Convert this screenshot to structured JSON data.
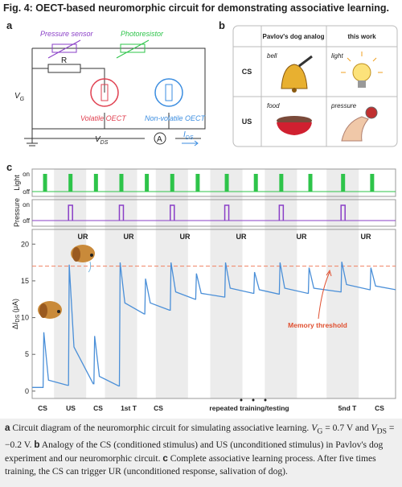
{
  "title": "Fig. 4: OECT-based neuromorphic circuit for demonstrating associative learning.",
  "panel_a": {
    "letter": "a",
    "pressure_sensor": "Pressure sensor",
    "photoresistor": "Photoresistor",
    "resistor": "R",
    "vg": {
      "main": "V",
      "sub": "G"
    },
    "volatile": "Volatile OECT",
    "nonvolatile": "Non-volatile OECT",
    "vds": {
      "main": "V",
      "sub": "DS"
    },
    "ammeter": "A",
    "ids": {
      "main": "I",
      "sub": "DS"
    }
  },
  "panel_b": {
    "letter": "b",
    "headers": [
      "Pavlov's dog analog",
      "this work"
    ],
    "rows": [
      {
        "label": "CS",
        "items": [
          "bell",
          "light"
        ]
      },
      {
        "label": "US",
        "items": [
          "food",
          "pressure"
        ]
      }
    ]
  },
  "chart_data": {
    "type": "line",
    "letter": "c",
    "color": "#4a8fd8",
    "light": {
      "label": "Light",
      "on": "on",
      "off": "off",
      "color": "#2ec44a",
      "pulses": [
        3,
        10,
        17,
        24,
        31,
        38,
        45,
        53,
        61,
        68,
        76,
        85,
        93
      ]
    },
    "pressure": {
      "label": "Pressure",
      "on": "on",
      "off": "off",
      "color": "#8a3fc7",
      "pulses": [
        10,
        24,
        38,
        53,
        68,
        85
      ]
    },
    "ylabel": {
      "main": "ΔI",
      "sub": "DS",
      "unit": " (μA)"
    },
    "xlim": [
      0,
      100
    ],
    "ylim": [
      -1,
      22
    ],
    "yticks": [
      0,
      5,
      10,
      15,
      20
    ],
    "x": [
      0,
      3,
      3.2,
      4.5,
      9.7,
      10,
      10.2,
      11.5,
      16.8,
      17,
      17.2,
      18.5,
      23.8,
      24,
      24.2,
      25.5,
      30.8,
      31,
      31.2,
      32.5,
      37.8,
      38,
      38.2,
      39.5,
      44.8,
      45,
      45.2,
      46.5,
      52.8,
      53,
      53.2,
      54.5,
      60.8,
      61,
      61.2,
      62.5,
      67.8,
      68,
      68.2,
      69.5,
      75.8,
      76,
      76.2,
      77.5,
      84.8,
      85,
      85.2,
      86.5,
      92.8,
      93,
      93.2,
      94.5,
      100
    ],
    "values": [
      0.5,
      0.5,
      8,
      1.5,
      0.8,
      0.8,
      17.2,
      6,
      1.0,
      1.0,
      7.5,
      2,
      0.7,
      0.7,
      17.5,
      12,
      10.5,
      10.5,
      15.3,
      12,
      11,
      11,
      17.5,
      13.5,
      12.5,
      12.5,
      16,
      13.3,
      12.8,
      12.8,
      17.5,
      14,
      13.3,
      13.3,
      16.2,
      13.8,
      13.2,
      13.2,
      17.5,
      14,
      13.3,
      13.3,
      16.8,
      14,
      13.5,
      13.5,
      17.6,
      14.5,
      13.8,
      13.8,
      16.8,
      14.3,
      13.8
    ],
    "threshold": 17,
    "threshold_color": "#f08060",
    "threshold_label": "Memory threshold",
    "ur_labels": [
      "UR",
      "UR",
      "UR",
      "UR",
      "UR",
      "UR"
    ],
    "stage_labels": [
      "CS",
      "US",
      "CS",
      "1st T",
      "CS",
      "repeated training/testing",
      "5nd T",
      "CS"
    ]
  },
  "caption": [
    "a",
    " Circuit diagram of the neuromorphic circuit for simulating associative learning. ",
    "V",
    "G",
    " = 0.7 V and ",
    "V",
    "DS",
    " = −0.2 V. ",
    "b",
    " Analogy of the CS (conditioned stimulus) and US (unconditioned stimulus) in Pavlov's dog experiment and our neuromorphic circuit. ",
    "c",
    " Complete associative learning process. After five times training, the CS can trigger UR (unconditioned response, salivation of dog)."
  ]
}
